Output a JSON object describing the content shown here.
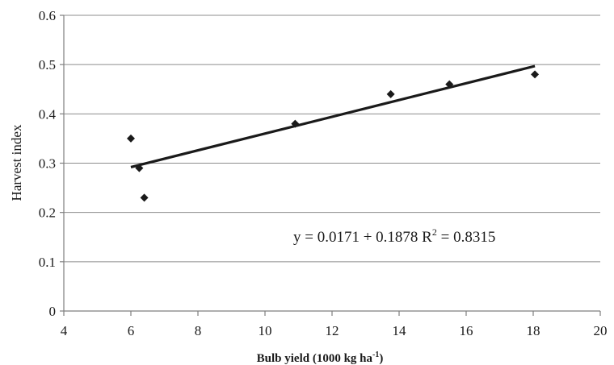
{
  "chart_data": {
    "type": "scatter",
    "title": "",
    "xlabel": "Bulb yield (1000 kg ha",
    "xlabel_sup": "-1",
    "xlabel_close": ")",
    "ylabel": "Harvest index",
    "xlim": [
      4,
      20
    ],
    "ylim": [
      0,
      0.6
    ],
    "xticks": [
      4,
      6,
      8,
      10,
      12,
      14,
      16,
      18,
      20
    ],
    "yticks": [
      0,
      0.1,
      0.2,
      0.3,
      0.4,
      0.5,
      0.6
    ],
    "grid": "horizontal",
    "series": [
      {
        "marker": "diamond",
        "color": "#1a1a1a",
        "points": [
          {
            "x": 6.0,
            "y": 0.35
          },
          {
            "x": 6.25,
            "y": 0.29
          },
          {
            "x": 6.4,
            "y": 0.23
          },
          {
            "x": 10.9,
            "y": 0.38
          },
          {
            "x": 13.75,
            "y": 0.44
          },
          {
            "x": 15.5,
            "y": 0.46
          },
          {
            "x": 18.05,
            "y": 0.48
          }
        ]
      }
    ],
    "trendline": {
      "x_start": 6.0,
      "y_start": 0.292,
      "x_end": 18.05,
      "y_end": 0.497,
      "color": "#1a1a1a",
      "equation": "y = 0.0171 + 0.1878 R",
      "equation_sup": "2",
      "equation_tail": " = 0.8315"
    }
  }
}
